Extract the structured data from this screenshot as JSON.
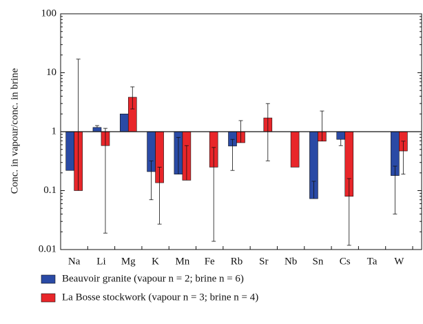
{
  "chart_data": {
    "type": "bar",
    "y_label": "Conc. in vapour/conc. in brine",
    "categories": [
      "Na",
      "Li",
      "Mg",
      "K",
      "Mn",
      "Fe",
      "Rb",
      "Sr",
      "Nb",
      "Sn",
      "Cs",
      "Ta",
      "W"
    ],
    "log_scale": true,
    "baseline": 1,
    "ylim": [
      0.01,
      100
    ],
    "yticks": [
      0.01,
      0.1,
      1,
      10,
      100
    ],
    "legend": "bottom",
    "series": [
      {
        "name": "Beauvoir granite (vapour n = 2; brine n = 6)",
        "color": "#2a4aa5",
        "values": [
          0.22,
          1.18,
          2.0,
          0.21,
          0.19,
          null,
          0.57,
          null,
          null,
          0.073,
          0.74,
          null,
          0.18
        ],
        "error_low": [
          null,
          null,
          null,
          0.07,
          null,
          null,
          0.22,
          null,
          null,
          null,
          0.58,
          null,
          0.04
        ],
        "error_high": [
          null,
          1.27,
          null,
          0.32,
          0.8,
          null,
          0.74,
          null,
          null,
          0.144,
          null,
          null,
          0.26
        ]
      },
      {
        "name": "La Bosse stockwork (vapour n = 3; brine n = 4)",
        "color": "#e8262a",
        "values": [
          0.1,
          0.58,
          3.84,
          0.136,
          0.15,
          0.25,
          0.65,
          1.71,
          0.25,
          0.69,
          0.08,
          null,
          0.47
        ],
        "error_low": [
          null,
          0.019,
          2.43,
          0.027,
          null,
          0.0138,
          null,
          0.32,
          null,
          null,
          0.0118,
          null,
          0.19
        ],
        "error_high": [
          17,
          1.14,
          5.76,
          0.25,
          0.58,
          0.54,
          1.54,
          3.0,
          null,
          2.24,
          0.16,
          null,
          0.69
        ]
      }
    ]
  }
}
